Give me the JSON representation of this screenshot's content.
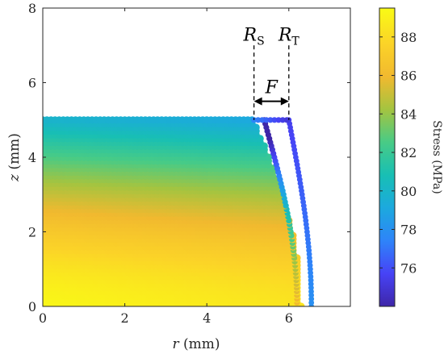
{
  "chart_data": {
    "type": "scatter",
    "xlabel_var": "r",
    "xlabel_unit": " (mm)",
    "ylabel_var": "z",
    "ylabel_unit": " (mm)",
    "xlim": [
      0,
      7.5
    ],
    "ylim": [
      0,
      8
    ],
    "xticks": [
      "0",
      "2",
      "4",
      "6"
    ],
    "yticks": [
      "0",
      "2",
      "4",
      "6",
      "8"
    ],
    "colorbar": {
      "label": "Stress (MPa)",
      "range": [
        74,
        89.5
      ],
      "ticks": [
        "76",
        "78",
        "80",
        "82",
        "84",
        "86",
        "88"
      ],
      "colormap": [
        "#3e26a8",
        "#4743f6",
        "#2e84f9",
        "#1ca9de",
        "#18bfb4",
        "#48cb86",
        "#a4c440",
        "#f1b92f",
        "#fbd328",
        "#f9fb15"
      ]
    },
    "series": {
      "cylinder_height": 5.0,
      "base_radius": 6.3,
      "top_radius": 5.15,
      "stress_at_base": 89.3,
      "stress_at_top": 80.0,
      "outer_shell_radius_base": 6.55,
      "outer_shell_radius_top": 6.0,
      "inner_shell_radius_base": 6.2,
      "inner_shell_radius_top": 5.4
    },
    "annotations": {
      "R_S": {
        "base": "R",
        "sub": "S",
        "r": 5.15
      },
      "R_T": {
        "base": "R",
        "sub": "T",
        "r": 6.0
      },
      "F": {
        "label": "F",
        "z": 5.5
      },
      "dashed_line_top": 7.0
    }
  }
}
